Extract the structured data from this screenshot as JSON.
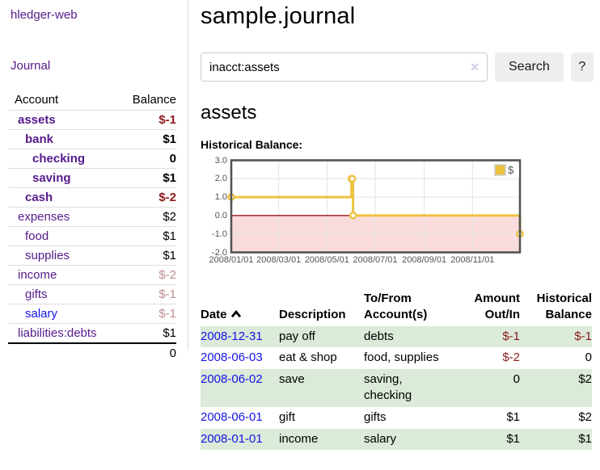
{
  "colors": {
    "link_visited": "#551A8B",
    "link_unvisited": "#1414E6",
    "negative_strong": "#8B1A1A",
    "negative_soft": "#BE8C8C",
    "row_stripe_green": "#DBEAD9",
    "button_bg": "#eeeeee"
  },
  "sidebar": {
    "app_title": "hledger-web",
    "nav_journal": "Journal",
    "accounts_table": {
      "header_account": "Account",
      "header_balance": "Balance",
      "rows": [
        {
          "name": "assets",
          "balance": "$-1",
          "indent": 0,
          "bold": true
        },
        {
          "name": "bank",
          "balance": "$1",
          "indent": 1,
          "bold": true
        },
        {
          "name": "checking",
          "balance": "0",
          "indent": 2,
          "bold": true
        },
        {
          "name": "saving",
          "balance": "$1",
          "indent": 2,
          "bold": true
        },
        {
          "name": "cash",
          "balance": "$-2",
          "indent": 1,
          "bold": true
        },
        {
          "name": "expenses",
          "balance": "$2",
          "indent": 0,
          "bold": false
        },
        {
          "name": "food",
          "balance": "$1",
          "indent": 1,
          "bold": false
        },
        {
          "name": "supplies",
          "balance": "$1",
          "indent": 1,
          "bold": false
        },
        {
          "name": "income",
          "balance": "$-2",
          "indent": 0,
          "bold": false
        },
        {
          "name": "gifts",
          "balance": "$-1",
          "indent": 1,
          "bold": false
        },
        {
          "name": "salary",
          "balance": "$-1",
          "indent": 1,
          "bold": false,
          "unvisited": true
        },
        {
          "name": "liabilities:debts",
          "balance": "$1",
          "indent": 0,
          "bold": false
        }
      ],
      "total": "0"
    }
  },
  "header": {
    "title": "sample.journal"
  },
  "search": {
    "value": "inacct:assets",
    "clear_icon": "✕",
    "button_label": "Search",
    "help_label": "?"
  },
  "account_page": {
    "title": "assets",
    "chart_label": "Historical Balance:"
  },
  "chart_data": {
    "type": "line",
    "title": "Historical Balance of assets",
    "step": true,
    "x_range": [
      "2008-01-01",
      "2008-12-31"
    ],
    "ylim": [
      -2,
      3
    ],
    "y_ticks": [
      3.0,
      2.0,
      1.0,
      0.0,
      -1.0,
      -2.0
    ],
    "x_ticks": [
      "2008/01/01",
      "2008/03/01",
      "2008/05/01",
      "2008/07/01",
      "2008/09/01",
      "2008/11/01"
    ],
    "grid": true,
    "series": [
      {
        "name": "$",
        "color": "#EDC240",
        "points": [
          {
            "date": "2008-01-01",
            "value": 1
          },
          {
            "date": "2008-06-01",
            "value": 2
          },
          {
            "date": "2008-06-02",
            "value": 2
          },
          {
            "date": "2008-06-03",
            "value": 0
          },
          {
            "date": "2008-12-31",
            "value": -1
          }
        ]
      }
    ],
    "legend": {
      "position": "top-right",
      "label": "$",
      "swatch_color": "#EDC240"
    },
    "negative_region_color": "#FBDCDC",
    "zero_line_color": "#8B0000",
    "grid_color": "#e3e3e3",
    "border_color": "#545454"
  },
  "transactions": {
    "headers": [
      "Date",
      "Description",
      "To/From Account(s)",
      "Amount Out/In",
      "Historical Balance"
    ],
    "rows": [
      {
        "date": "2008-12-31",
        "description": "pay off",
        "accounts": "debts",
        "amount": "$-1",
        "balance": "$-1"
      },
      {
        "date": "2008-06-03",
        "description": "eat & shop",
        "accounts": "food, supplies",
        "amount": "$-2",
        "balance": "0"
      },
      {
        "date": "2008-06-02",
        "description": "save",
        "accounts": "saving, checking",
        "amount": "0",
        "balance": "$2"
      },
      {
        "date": "2008-06-01",
        "description": "gift",
        "accounts": "gifts",
        "amount": "$1",
        "balance": "$2"
      },
      {
        "date": "2008-01-01",
        "description": "income",
        "accounts": "salary",
        "amount": "$1",
        "balance": "$1"
      }
    ]
  }
}
